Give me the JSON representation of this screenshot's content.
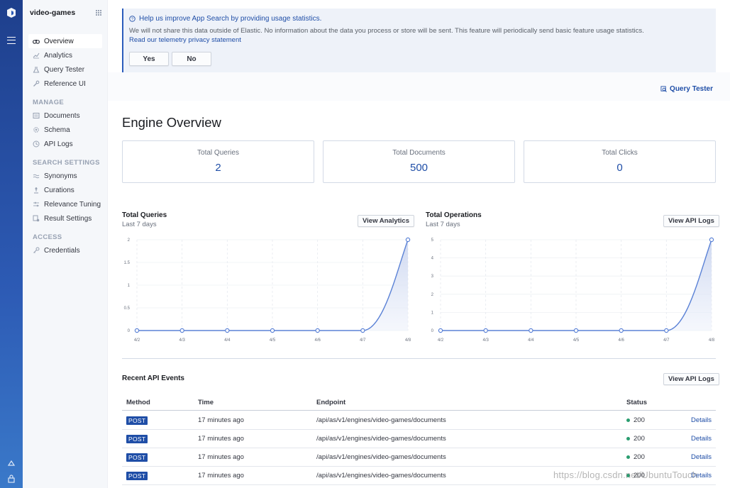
{
  "sidebar": {
    "engine_name": "video-games",
    "nav": [
      {
        "label": "Overview",
        "icon": "binoculars-icon",
        "active": true
      },
      {
        "label": "Analytics",
        "icon": "chart-icon"
      },
      {
        "label": "Query Tester",
        "icon": "flask-icon"
      },
      {
        "label": "Reference UI",
        "icon": "wrench-icon"
      }
    ],
    "manage_heading": "MANAGE",
    "manage": [
      {
        "label": "Documents",
        "icon": "documents-icon"
      },
      {
        "label": "Schema",
        "icon": "gear-icon"
      },
      {
        "label": "API Logs",
        "icon": "clock-icon"
      }
    ],
    "search_heading": "SEARCH SETTINGS",
    "search": [
      {
        "label": "Synonyms",
        "icon": "synonyms-icon"
      },
      {
        "label": "Curations",
        "icon": "curations-icon"
      },
      {
        "label": "Relevance Tuning",
        "icon": "sliders-icon"
      },
      {
        "label": "Result Settings",
        "icon": "result-settings-icon"
      }
    ],
    "access_heading": "ACCESS",
    "access": [
      {
        "label": "Credentials",
        "icon": "key-icon"
      }
    ]
  },
  "callout": {
    "title": "Help us improve App Search by providing usage statistics.",
    "body": "We will not share this data outside of Elastic. No information about the data you process or store will be sent. This feature will periodically send basic feature usage statistics.",
    "link": "Read our telemetry privacy statement",
    "yes": "Yes",
    "no": "No"
  },
  "header": {
    "query_tester_link": "Query Tester"
  },
  "page_title": "Engine Overview",
  "stats": [
    {
      "label": "Total Queries",
      "value": "2"
    },
    {
      "label": "Total Documents",
      "value": "500"
    },
    {
      "label": "Total Clicks",
      "value": "0"
    }
  ],
  "charts_ui": {
    "queries_title": "Total Queries",
    "queries_sub": "Last 7 days",
    "queries_button": "View Analytics",
    "ops_title": "Total Operations",
    "ops_sub": "Last 7 days",
    "ops_button": "View API Logs"
  },
  "chart_data": [
    {
      "type": "area",
      "title": "Total Queries",
      "subtitle": "Last 7 days",
      "x": [
        "4/2",
        "4/3",
        "4/4",
        "4/5",
        "4/6",
        "4/7",
        "4/8"
      ],
      "values": [
        0,
        0,
        0,
        0,
        0,
        0,
        2
      ],
      "yticks": [
        "0",
        "0.5",
        "1",
        "1.5",
        "2"
      ],
      "ylim": [
        0,
        2
      ],
      "grid": true
    },
    {
      "type": "area",
      "title": "Total Operations",
      "subtitle": "Last 7 days",
      "x": [
        "4/2",
        "4/3",
        "4/4",
        "4/5",
        "4/6",
        "4/7",
        "4/8"
      ],
      "values": [
        0,
        0,
        0,
        0,
        0,
        0,
        5
      ],
      "yticks": [
        "0",
        "1",
        "2",
        "3",
        "4",
        "5"
      ],
      "ylim": [
        0,
        5
      ],
      "grid": true
    }
  ],
  "events": {
    "title": "Recent API Events",
    "button": "View API Logs",
    "columns": [
      "Method",
      "Time",
      "Endpoint",
      "Status"
    ],
    "rows": [
      {
        "method": "POST",
        "time": "17 minutes ago",
        "endpoint": "/api/as/v1/engines/video-games/documents",
        "status": "200",
        "action": "Details"
      },
      {
        "method": "POST",
        "time": "17 minutes ago",
        "endpoint": "/api/as/v1/engines/video-games/documents",
        "status": "200",
        "action": "Details"
      },
      {
        "method": "POST",
        "time": "17 minutes ago",
        "endpoint": "/api/as/v1/engines/video-games/documents",
        "status": "200",
        "action": "Details"
      },
      {
        "method": "POST",
        "time": "17 minutes ago",
        "endpoint": "/api/as/v1/engines/video-games/documents",
        "status": "200",
        "action": "Details"
      }
    ]
  },
  "watermark": "https://blog.csdn.net/UbuntuTouch",
  "colors": {
    "accent": "#1f4ea7",
    "rail": "#2d5bb5",
    "line": "#5b82d6",
    "success": "#2a9d6f"
  }
}
